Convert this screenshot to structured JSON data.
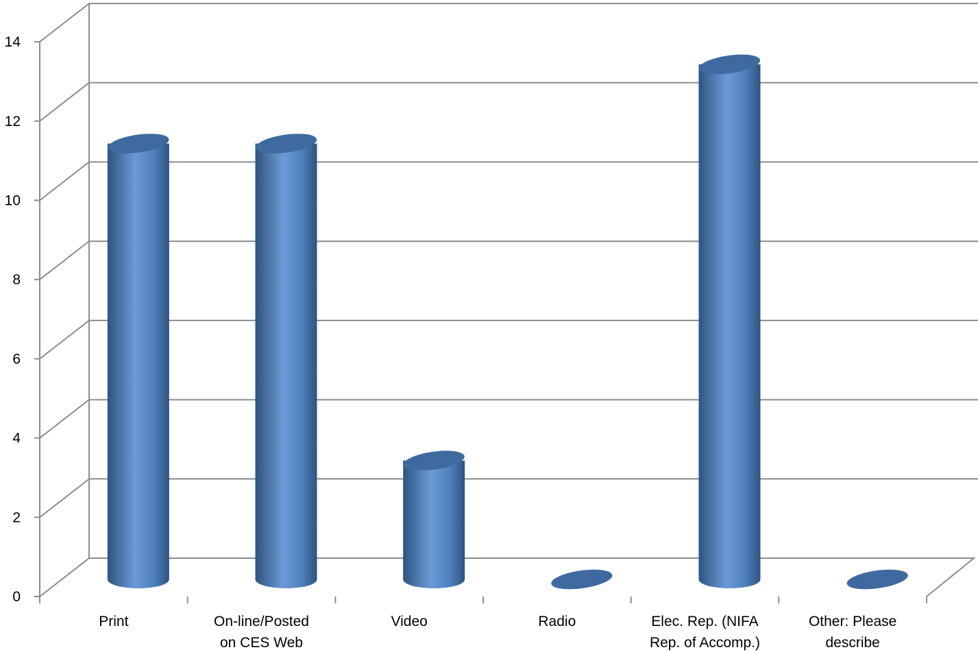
{
  "chart_data": {
    "type": "bar",
    "style": "3d-cylinder",
    "categories": [
      [
        "Print"
      ],
      [
        "On-line/Posted",
        "on CES Web"
      ],
      [
        "Video"
      ],
      [
        "Radio"
      ],
      [
        "Elec. Rep. (NIFA",
        "Rep. of Accomp.)"
      ],
      [
        "Other: Please",
        "describe"
      ]
    ],
    "values": [
      11,
      11,
      3,
      0,
      13,
      0
    ],
    "ylim": [
      0,
      14
    ],
    "yticks": [
      0,
      2,
      4,
      6,
      8,
      10,
      12,
      14
    ],
    "grid": true,
    "legend": "none",
    "colors": {
      "bar_main": "#4f81bd",
      "bar_light": "#6d9ad6",
      "bar_dark": "#2d5482",
      "top": "#3e6a9f",
      "grid": "#8c8c8c"
    }
  }
}
